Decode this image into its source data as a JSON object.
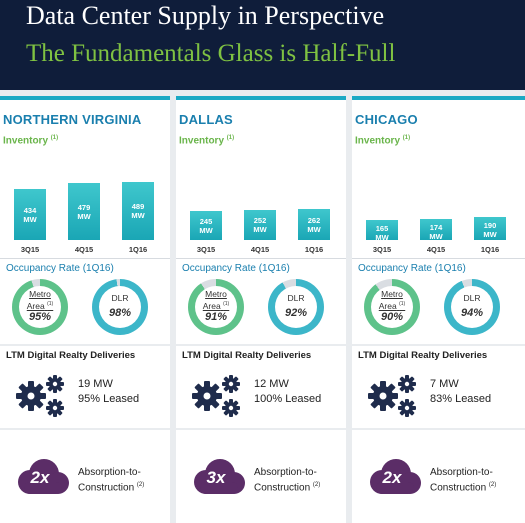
{
  "header": {
    "title": "Data Center Supply in Perspective",
    "subtitle": "The Fundamentals Glass is Half-Full"
  },
  "labels": {
    "inventory": "Inventory",
    "inventory_note": "(1)",
    "occupancy": "Occupancy Rate (1Q16)",
    "metro_line1": "Metro",
    "metro_line2": "Area",
    "metro_note": "(1)",
    "dlr": "DLR",
    "ltm": "LTM Digital Realty Deliveries",
    "absorption_line1": "Absorption-to-",
    "absorption_line2": "Construction",
    "absorption_note": "(2)"
  },
  "colors": {
    "header_bg": "#0f1d3a",
    "subtitle": "#7fc242",
    "accent_teal": "#1ba9c4",
    "market_name": "#1a7fae",
    "inventory_label": "#6ab54b",
    "icon_navy": "#1f2c4c",
    "cloud_purple": "#5b2d67"
  },
  "chart_data": [
    {
      "type": "bar",
      "title": "NORTHERN VIRGINIA",
      "categories": [
        "3Q15",
        "4Q15",
        "1Q16"
      ],
      "series": [
        {
          "values": [
            434,
            479,
            489
          ]
        }
      ],
      "value_labels": [
        "434 MW",
        "479 MW",
        "489 MW"
      ],
      "units": "MW",
      "occupancy": {
        "metro_area": "95%",
        "dlr": "98%",
        "metro_area_value": 95,
        "dlr_value": 98
      },
      "ltm": {
        "mw": "19 MW",
        "leased": "95% Leased"
      },
      "absorption": "2x"
    },
    {
      "type": "bar",
      "title": "DALLAS",
      "categories": [
        "3Q15",
        "4Q15",
        "1Q16"
      ],
      "series": [
        {
          "values": [
            245,
            252,
            262
          ]
        }
      ],
      "value_labels": [
        "245 MW",
        "252 MW",
        "262 MW"
      ],
      "units": "MW",
      "occupancy": {
        "metro_area": "91%",
        "dlr": "92%",
        "metro_area_value": 91,
        "dlr_value": 92
      },
      "ltm": {
        "mw": "12 MW",
        "leased": "100% Leased"
      },
      "absorption": "3x"
    },
    {
      "type": "bar",
      "title": "CHICAGO",
      "categories": [
        "3Q15",
        "4Q15",
        "1Q16"
      ],
      "series": [
        {
          "values": [
            165,
            174,
            190
          ]
        }
      ],
      "value_labels": [
        "165 MW",
        "174 MW",
        "190 MW"
      ],
      "units": "MW",
      "occupancy": {
        "metro_area": "90%",
        "dlr": "94%",
        "metro_area_value": 90,
        "dlr_value": 94
      },
      "ltm": {
        "mw": "7 MW",
        "leased": "83% Leased"
      },
      "absorption": "2x"
    }
  ]
}
